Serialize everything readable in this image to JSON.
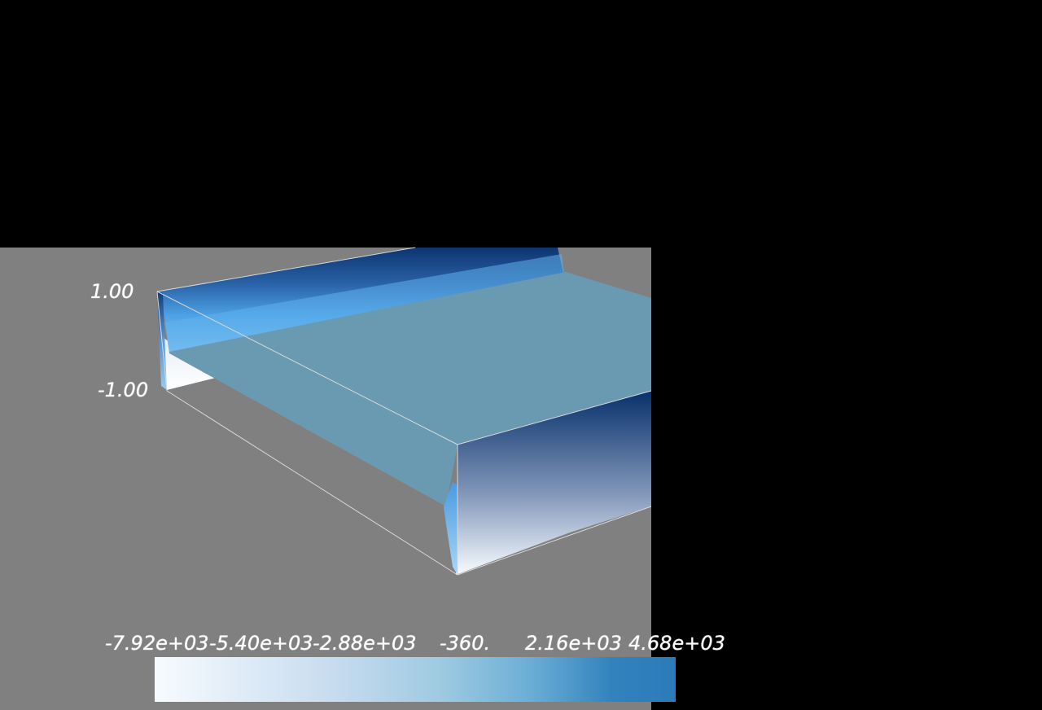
{
  "viewport": {
    "background": "#808080",
    "outer_background": "#000000"
  },
  "z_axis": {
    "max_label": "1.00",
    "min_label": "-1.00"
  },
  "colorbar": {
    "colormap": "Blues",
    "colors": [
      "#f7fbff",
      "#c6dbef",
      "#9ecae1",
      "#6baed6",
      "#3182bd"
    ],
    "labels": [
      "-7.92e+03",
      "-5.40e+03",
      "-2.88e+03",
      "-360.",
      "2.16e+03",
      "4.68e+03"
    ]
  },
  "surface": {
    "top_color": "#6a9ab2",
    "edge_dark_color": "#08306b",
    "edge_light_color": "#f7fbff",
    "ridge_color": "#4a9fe0"
  }
}
